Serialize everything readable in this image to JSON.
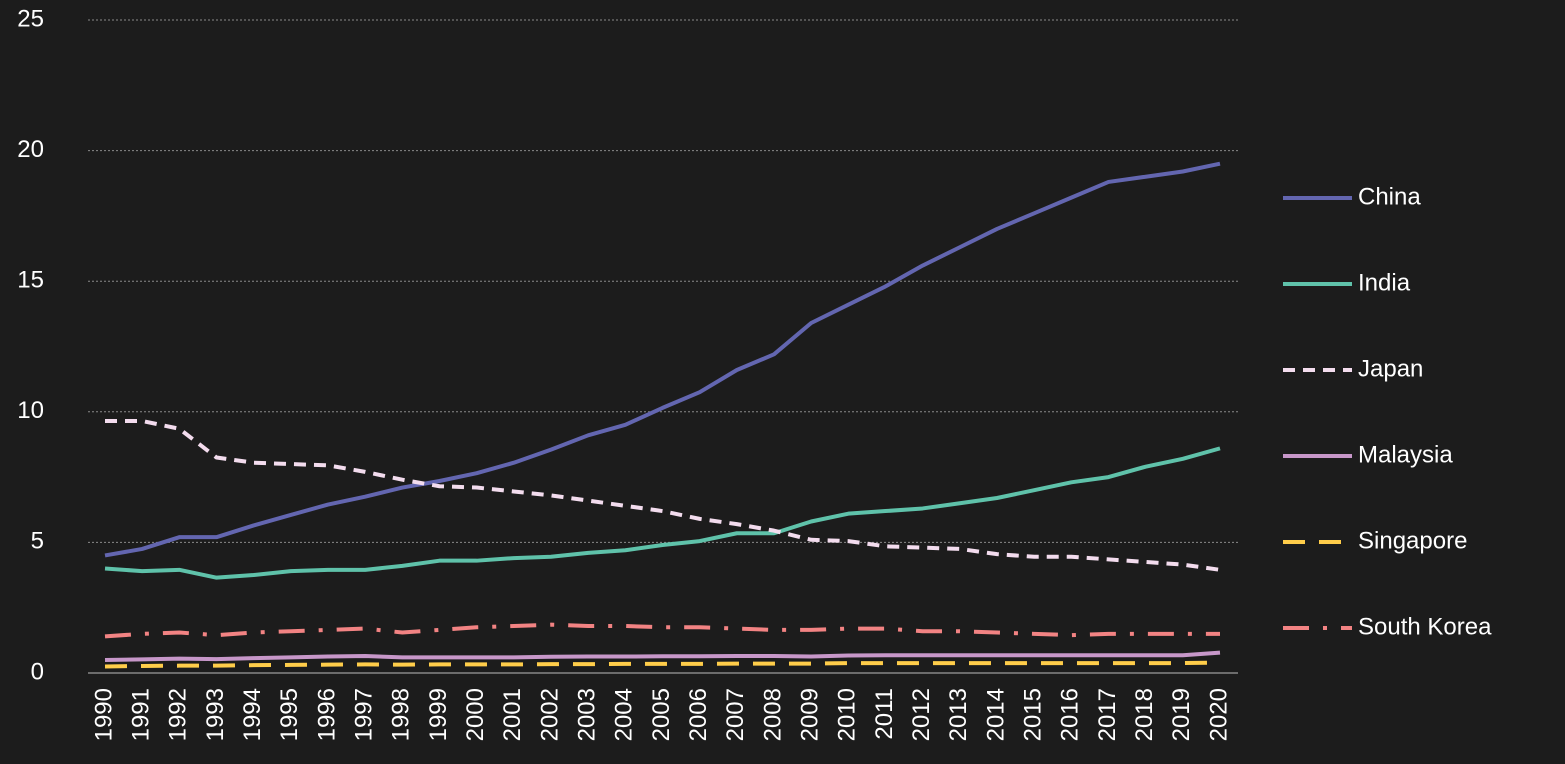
{
  "chart_data": {
    "type": "line",
    "categories": [
      "1990",
      "1991",
      "1992",
      "1993",
      "1994",
      "1995",
      "1996",
      "1997",
      "1998",
      "1999",
      "2000",
      "2001",
      "2002",
      "2003",
      "2004",
      "2005",
      "2006",
      "2007",
      "2008",
      "2009",
      "2010",
      "2011",
      "2012",
      "2013",
      "2014",
      "2015",
      "2016",
      "2017",
      "2018",
      "2019",
      "2020"
    ],
    "series": [
      {
        "name": "China",
        "color": "#6366b0",
        "style": "solid",
        "values": [
          4.5,
          4.75,
          5.2,
          5.2,
          5.65,
          6.05,
          6.45,
          6.75,
          7.1,
          7.35,
          7.65,
          8.05,
          8.55,
          9.1,
          9.5,
          10.15,
          10.75,
          11.6,
          12.2,
          13.4,
          14.1,
          14.8,
          15.6,
          16.3,
          17.0,
          17.6,
          18.2,
          18.8,
          19.0,
          19.2,
          19.5
        ]
      },
      {
        "name": "India",
        "color": "#5fc2aa",
        "style": "solid",
        "values": [
          4.0,
          3.9,
          3.95,
          3.65,
          3.75,
          3.9,
          3.95,
          3.95,
          4.1,
          4.3,
          4.3,
          4.4,
          4.45,
          4.6,
          4.7,
          4.9,
          5.05,
          5.35,
          5.35,
          5.8,
          6.1,
          6.2,
          6.3,
          6.5,
          6.7,
          7.0,
          7.3,
          7.5,
          7.9,
          8.2,
          8.6
        ]
      },
      {
        "name": "Japan",
        "color": "#f3dcee",
        "style": "dashed",
        "values": [
          9.65,
          9.65,
          9.35,
          8.25,
          8.05,
          8.0,
          7.95,
          7.7,
          7.4,
          7.15,
          7.1,
          6.95,
          6.8,
          6.6,
          6.4,
          6.2,
          5.9,
          5.7,
          5.45,
          5.1,
          5.05,
          4.85,
          4.8,
          4.75,
          4.55,
          4.45,
          4.45,
          4.35,
          4.25,
          4.15,
          3.95
        ]
      },
      {
        "name": "Malaysia",
        "color": "#c797c9",
        "style": "solid",
        "values": [
          0.5,
          0.52,
          0.55,
          0.53,
          0.57,
          0.6,
          0.63,
          0.65,
          0.6,
          0.6,
          0.6,
          0.6,
          0.62,
          0.63,
          0.63,
          0.64,
          0.64,
          0.65,
          0.65,
          0.63,
          0.67,
          0.68,
          0.68,
          0.68,
          0.68,
          0.68,
          0.68,
          0.68,
          0.68,
          0.68,
          0.78
        ]
      },
      {
        "name": "Singapore",
        "color": "#ffcd4a",
        "style": "longdash",
        "values": [
          0.25,
          0.27,
          0.28,
          0.28,
          0.3,
          0.31,
          0.32,
          0.33,
          0.32,
          0.33,
          0.33,
          0.33,
          0.34,
          0.34,
          0.35,
          0.35,
          0.35,
          0.36,
          0.36,
          0.36,
          0.38,
          0.38,
          0.38,
          0.38,
          0.38,
          0.38,
          0.38,
          0.38,
          0.38,
          0.38,
          0.4
        ]
      },
      {
        "name": "South Korea",
        "color": "#f28383",
        "style": "dashdot",
        "values": [
          1.4,
          1.5,
          1.55,
          1.45,
          1.55,
          1.6,
          1.65,
          1.7,
          1.55,
          1.65,
          1.75,
          1.8,
          1.85,
          1.8,
          1.8,
          1.75,
          1.75,
          1.7,
          1.65,
          1.65,
          1.7,
          1.7,
          1.6,
          1.6,
          1.55,
          1.5,
          1.45,
          1.5,
          1.5,
          1.5,
          1.5
        ]
      }
    ],
    "ylim": [
      0,
      25
    ],
    "yticks": [
      0,
      5,
      10,
      15,
      20,
      25
    ],
    "grid": true,
    "legend": "right"
  }
}
